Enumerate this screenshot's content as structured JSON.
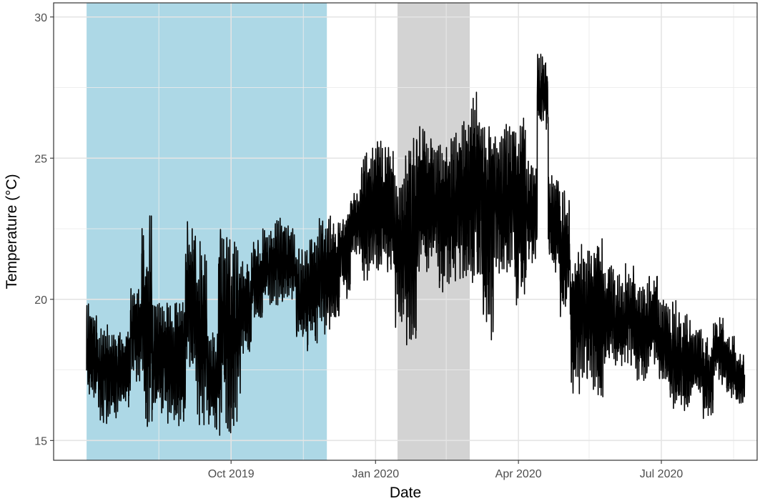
{
  "chart_data": {
    "type": "line",
    "title": "",
    "xlabel": "Date",
    "ylabel": "Temperature (°C)",
    "xlim": [
      "2019-06-10",
      "2020-08-31"
    ],
    "ylim": [
      14.3,
      30.5
    ],
    "y_ticks": [
      15,
      20,
      25,
      30
    ],
    "y_tick_labels": [
      "15",
      "20",
      "25",
      "30"
    ],
    "x_ticks": [
      "2019-10-01",
      "2020-01-01",
      "2020-04-01",
      "2020-07-01"
    ],
    "x_tick_labels": [
      "Oct 2019",
      "Jan 2020",
      "Apr 2020",
      "Jul 2020"
    ],
    "x_minor_ticks": [
      "2019-08-16",
      "2019-11-16",
      "2020-02-15",
      "2020-05-16",
      "2020-08-16"
    ],
    "grid": true,
    "legend": "none",
    "shaded_periods": [
      {
        "start": "2019-07-01",
        "end": "2019-12-01",
        "color": "#add8e6"
      },
      {
        "start": "2020-01-15",
        "end": "2020-03-01",
        "color": "#d3d3d3"
      }
    ],
    "series": [
      {
        "color": "#000000",
        "x": [
          "2019-07-01",
          "2019-07-08",
          "2019-07-15",
          "2019-07-22",
          "2019-07-29",
          "2019-08-05",
          "2019-08-12",
          "2019-08-19",
          "2019-08-26",
          "2019-09-02",
          "2019-09-09",
          "2019-09-16",
          "2019-09-23",
          "2019-09-30",
          "2019-10-07",
          "2019-10-14",
          "2019-10-21",
          "2019-10-28",
          "2019-11-04",
          "2019-11-11",
          "2019-11-18",
          "2019-11-25",
          "2019-12-02",
          "2019-12-09",
          "2019-12-16",
          "2019-12-23",
          "2019-12-30",
          "2020-01-06",
          "2020-01-13",
          "2020-01-20",
          "2020-01-27",
          "2020-02-03",
          "2020-02-10",
          "2020-02-17",
          "2020-02-24",
          "2020-03-02",
          "2020-03-09",
          "2020-03-16",
          "2020-03-23",
          "2020-03-30",
          "2020-04-06",
          "2020-04-13",
          "2020-04-20",
          "2020-04-27",
          "2020-05-04",
          "2020-05-11",
          "2020-05-18",
          "2020-05-25",
          "2020-06-01",
          "2020-06-08",
          "2020-06-15",
          "2020-06-22",
          "2020-06-29",
          "2020-07-06",
          "2020-07-13",
          "2020-07-20",
          "2020-07-27",
          "2020-08-03",
          "2020-08-10",
          "2020-08-17"
        ],
        "min": [
          16.3,
          15.6,
          15.8,
          16.0,
          16.8,
          15.2,
          15.8,
          15.6,
          15.5,
          17.0,
          15.3,
          15.4,
          15.1,
          15.2,
          18.0,
          19.2,
          19.7,
          19.8,
          19.9,
          18.2,
          18.0,
          18.5,
          18.8,
          20.0,
          21.5,
          20.5,
          21.0,
          20.8,
          19.0,
          18.1,
          20.5,
          21.0,
          20.0,
          20.2,
          20.7,
          20.5,
          18.4,
          20.8,
          20.5,
          19.5,
          21.2,
          26.0,
          20.8,
          19.0,
          16.5,
          17.0,
          16.3,
          17.5,
          17.5,
          17.5,
          17.0,
          17.5,
          17.0,
          15.8,
          16.0,
          16.5,
          15.7,
          16.8,
          16.5,
          16.2
        ],
        "max": [
          20.0,
          19.2,
          19.0,
          19.1,
          21.0,
          23.1,
          20.0,
          20.0,
          20.1,
          22.9,
          22.2,
          19.0,
          22.5,
          22.2,
          21.5,
          22.2,
          22.6,
          22.9,
          22.8,
          22.0,
          22.5,
          23.0,
          23.0,
          23.4,
          24.0,
          25.3,
          25.8,
          25.5,
          24.5,
          25.9,
          26.5,
          26.1,
          25.9,
          26.0,
          26.5,
          27.4,
          26.5,
          26.0,
          26.5,
          26.7,
          25.0,
          28.7,
          24.5,
          24.0,
          22.0,
          22.3,
          22.5,
          21.5,
          21.0,
          21.3,
          20.5,
          21.0,
          20.0,
          20.0,
          19.5,
          19.0,
          18.8,
          19.5,
          18.8,
          18.2
        ]
      }
    ]
  }
}
